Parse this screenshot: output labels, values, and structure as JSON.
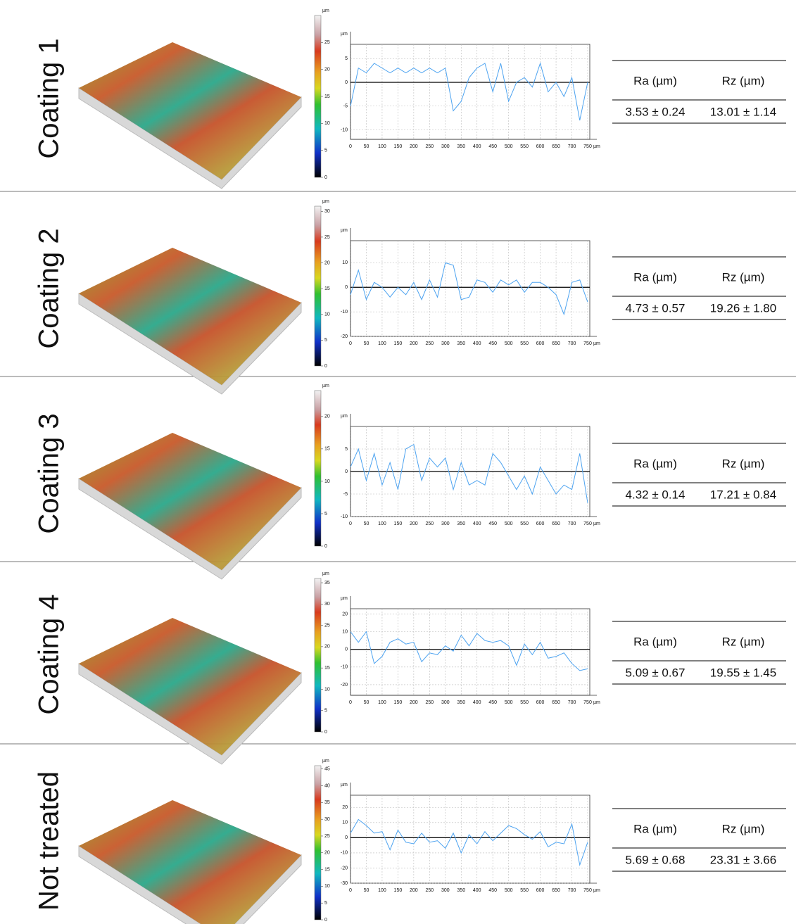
{
  "profile_axis": {
    "xlim": [
      0,
      750
    ],
    "xticks": [
      0,
      50,
      100,
      150,
      200,
      250,
      300,
      350,
      400,
      450,
      500,
      550,
      600,
      650,
      700,
      750
    ],
    "x_unit": "µm",
    "x": [
      0,
      25,
      50,
      75,
      100,
      125,
      150,
      175,
      200,
      225,
      250,
      275,
      300,
      325,
      350,
      375,
      400,
      425,
      450,
      475,
      500,
      525,
      550,
      575,
      600,
      625,
      650,
      675,
      700,
      725,
      750
    ]
  },
  "rows": [
    {
      "label": "Coating 1",
      "colorbar": {
        "unit": "µm",
        "lim": [
          0,
          30
        ],
        "ticks": [
          0,
          5,
          10,
          15,
          20,
          25
        ]
      },
      "profile": {
        "type": "line",
        "unit": "µm",
        "color": "#4da3f0",
        "ylim": [
          -12,
          8
        ],
        "yticks": [
          -10,
          -5,
          0,
          5
        ],
        "values": [
          -5,
          3,
          2,
          4,
          3,
          2,
          3,
          2,
          3,
          2,
          3,
          2,
          3,
          -6,
          -4,
          1,
          3,
          4,
          -2,
          4,
          -4,
          0,
          1,
          -1,
          4,
          -2,
          0,
          -3,
          1,
          -8,
          0
        ]
      },
      "table": {
        "headers": [
          "Ra (µm)",
          "Rz (µm)"
        ],
        "values": [
          "3.53 ± 0.24",
          "13.01 ± 1.14"
        ]
      }
    },
    {
      "label": "Coating 2",
      "colorbar": {
        "unit": "µm",
        "lim": [
          0,
          31
        ],
        "ticks": [
          0,
          5,
          10,
          15,
          20,
          25,
          30
        ]
      },
      "profile": {
        "type": "line",
        "unit": "µm",
        "color": "#4da3f0",
        "ylim": [
          -20,
          19
        ],
        "yticks": [
          -20,
          -10,
          0,
          10
        ],
        "values": [
          -3,
          7,
          -5,
          2,
          0,
          -4,
          0,
          -3,
          2,
          -5,
          3,
          -4,
          10,
          9,
          -5,
          -4,
          3,
          2,
          -2,
          3,
          1,
          3,
          -2,
          2,
          2,
          0,
          -3,
          -11,
          2,
          3,
          -6
        ]
      },
      "table": {
        "headers": [
          "Ra (µm)",
          "Rz (µm)"
        ],
        "values": [
          "4.73 ± 0.57",
          "19.26 ± 1.80"
        ]
      }
    },
    {
      "label": "Coating 3",
      "colorbar": {
        "unit": "µm",
        "lim": [
          0,
          24
        ],
        "ticks": [
          0,
          5,
          10,
          15,
          20
        ]
      },
      "profile": {
        "type": "line",
        "unit": "µm",
        "color": "#4da3f0",
        "ylim": [
          -10,
          10
        ],
        "yticks": [
          -10,
          -5,
          0,
          5
        ],
        "values": [
          1,
          5,
          -2,
          4,
          -3,
          2,
          -4,
          5,
          6,
          -2,
          3,
          1,
          3,
          -4,
          2,
          -3,
          -2,
          -3,
          4,
          2,
          -1,
          -4,
          -1,
          -5,
          1,
          -2,
          -5,
          -3,
          -4,
          4,
          -7
        ]
      },
      "table": {
        "headers": [
          "Ra (µm)",
          "Rz (µm)"
        ],
        "values": [
          "4.32 ± 0.14",
          "17.21 ± 0.84"
        ]
      }
    },
    {
      "label": "Coating 4",
      "colorbar": {
        "unit": "µm",
        "lim": [
          0,
          36
        ],
        "ticks": [
          0,
          5,
          10,
          15,
          20,
          25,
          30,
          35
        ]
      },
      "profile": {
        "type": "line",
        "unit": "µm",
        "color": "#4da3f0",
        "ylim": [
          -26,
          23
        ],
        "yticks": [
          -20,
          -10,
          0,
          10,
          20
        ],
        "values": [
          10,
          4,
          10,
          -8,
          -4,
          4,
          6,
          3,
          4,
          -7,
          -2,
          -3,
          2,
          -1,
          8,
          2,
          9,
          5,
          4,
          5,
          2,
          -9,
          3,
          -3,
          4,
          -5,
          -4,
          -2,
          -8,
          -12,
          -11
        ]
      },
      "table": {
        "headers": [
          "Ra (µm)",
          "Rz (µm)"
        ],
        "values": [
          "5.09 ± 0.67",
          "19.55 ± 1.45"
        ]
      }
    },
    {
      "label": "Not treated",
      "colorbar": {
        "unit": "µm",
        "lim": [
          0,
          46
        ],
        "ticks": [
          0,
          5,
          10,
          15,
          20,
          25,
          30,
          35,
          40,
          45
        ]
      },
      "profile": {
        "type": "line",
        "unit": "µm",
        "color": "#4da3f0",
        "ylim": [
          -30,
          28
        ],
        "yticks": [
          -30,
          -20,
          -10,
          0,
          10,
          20
        ],
        "values": [
          3,
          12,
          8,
          3,
          4,
          -8,
          5,
          -3,
          -4,
          3,
          -3,
          -2,
          -7,
          3,
          -10,
          2,
          -4,
          4,
          -2,
          3,
          8,
          6,
          2,
          -1,
          4,
          -6,
          -3,
          -4,
          9,
          -18,
          -3
        ]
      },
      "table": {
        "headers": [
          "Ra (µm)",
          "Rz (µm)"
        ],
        "values": [
          "5.69 ± 0.68",
          "23.31 ± 3.66"
        ]
      }
    }
  ]
}
